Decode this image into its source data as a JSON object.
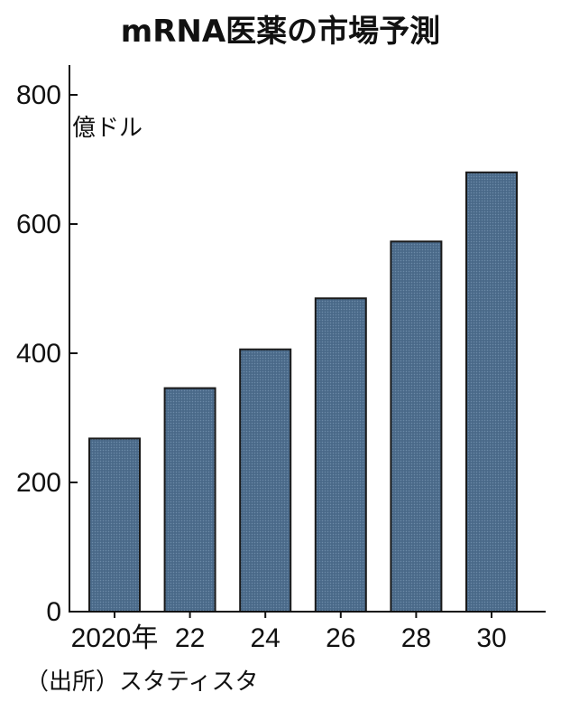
{
  "chart_data": {
    "type": "bar",
    "title": "mRNA医薬の市場予測",
    "ylabel": "億ドル",
    "xlabel": "",
    "categories": [
      "2020年",
      "22",
      "24",
      "26",
      "28",
      "30"
    ],
    "values": [
      268,
      346,
      406,
      485,
      573,
      680
    ],
    "ylim": [
      0,
      850
    ],
    "yticks": [
      "0",
      "200",
      "400",
      "600",
      "800"
    ],
    "bar_color": "#4f6f8f",
    "grid": false,
    "source": "（出所）スタティスタ"
  }
}
